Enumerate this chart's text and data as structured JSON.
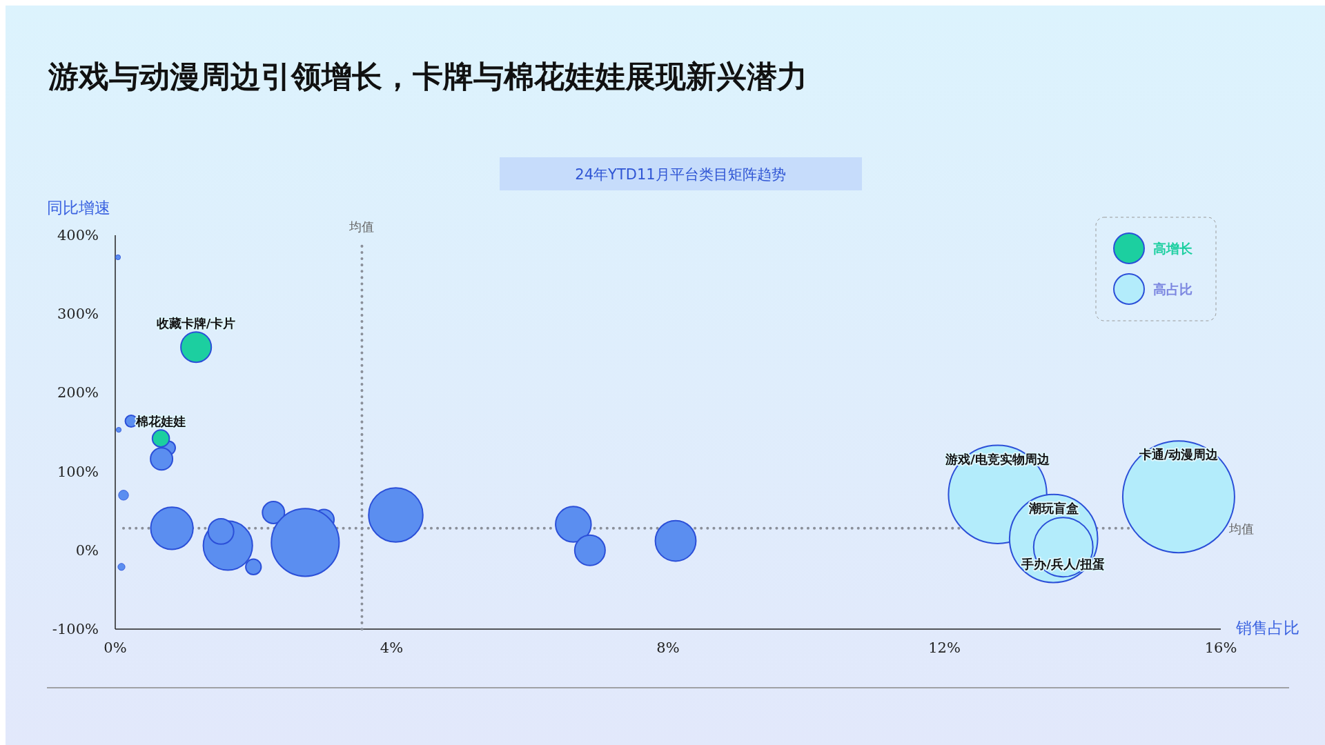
{
  "chart_data": {
    "type": "bubble",
    "title": "游戏与动漫周边引领增长，卡牌与棉花娃娃展现新兴潜力",
    "subtitle": "24年YTD11月平台类目矩阵趋势",
    "xlabel": "销售占比",
    "ylabel": "同比增速",
    "xlim": [
      0,
      16
    ],
    "ylim": [
      -100,
      400
    ],
    "xticks": [
      {
        "value": 0,
        "label": "0%"
      },
      {
        "value": 4,
        "label": "4%"
      },
      {
        "value": 8,
        "label": "8%"
      },
      {
        "value": 12,
        "label": "12%"
      },
      {
        "value": 16,
        "label": "16%"
      }
    ],
    "yticks": [
      {
        "value": -100,
        "label": "-100%"
      },
      {
        "value": 0,
        "label": "0%"
      },
      {
        "value": 100,
        "label": "100%"
      },
      {
        "value": 200,
        "label": "200%"
      },
      {
        "value": 300,
        "label": "300%"
      },
      {
        "value": 400,
        "label": "400%"
      }
    ],
    "grid": false,
    "legend": "top right",
    "series": [
      {
        "color": "#5b8ef0",
        "x": [
          0.04,
          0.23,
          0.05,
          0.77,
          0.67,
          0.12,
          0.09,
          0.82,
          1.63,
          1.53,
          2.29,
          2.0,
          3.02,
          2.75,
          4.06,
          6.63,
          6.87,
          8.11
        ],
        "values": [
          372,
          164,
          153,
          130,
          116,
          70,
          -21,
          28,
          6,
          24,
          48,
          -21,
          39,
          10,
          45,
          33,
          0,
          12
        ],
        "sizes": [
          0.002,
          0.011,
          0.002,
          0.015,
          0.039,
          0.008,
          0.004,
          0.143,
          0.193,
          0.052,
          0.039,
          0.019,
          0.033,
          0.367,
          0.235,
          0.101,
          0.074,
          0.132
        ]
      },
      {
        "name": "高增长",
        "color": "#1ccfa0",
        "x": [
          1.17,
          0.66
        ],
        "values": [
          258,
          142
        ],
        "sizes": [
          0.074,
          0.023
        ]
      },
      {
        "name": "高占比",
        "color": "#b3ecfb",
        "x": [
          12.77,
          13.58,
          13.72,
          15.39
        ],
        "values": [
          71,
          15,
          4,
          68
        ],
        "sizes": [
          0.772,
          0.621,
          0.281,
          1
        ]
      }
    ],
    "ref_lines": [
      {
        "axis": "x",
        "value": 3.57,
        "label": "均值",
        "line_style": "dotted"
      },
      {
        "axis": "y",
        "value": 28,
        "label": "均值",
        "line_style": "dotted"
      }
    ],
    "annotations": [
      {
        "text": "收藏卡牌/卡片",
        "x": 1.17,
        "y": 258
      },
      {
        "text": "棉花娃娃",
        "x": 0.66,
        "y": 142
      },
      {
        "text": "游戏/电竞实物周边",
        "x": 12.77,
        "y": 71
      },
      {
        "text": "潮玩盲盒",
        "x": 13.58,
        "y": 15
      },
      {
        "text": "手办/兵人/扭蛋",
        "x": 13.72,
        "y": 4
      },
      {
        "text": "卡通/动漫周边",
        "x": 15.39,
        "y": 68
      }
    ]
  }
}
